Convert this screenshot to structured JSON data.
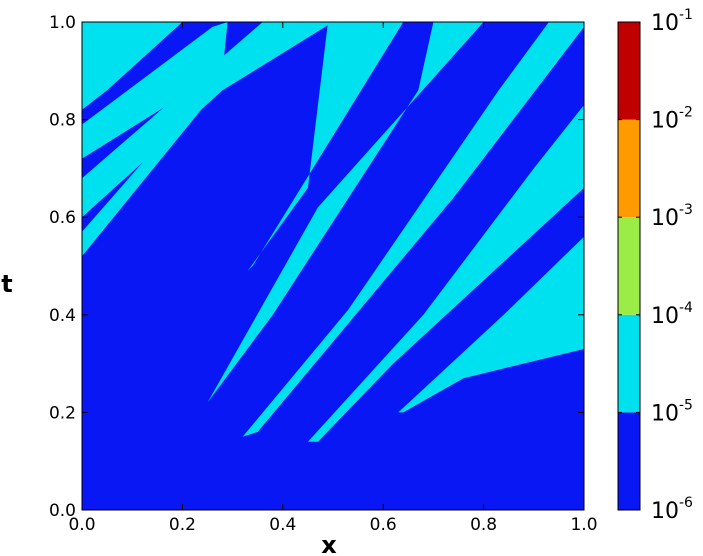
{
  "chart_data": {
    "type": "heatmap",
    "title": "",
    "xlabel": "x",
    "ylabel": "t",
    "xlim": [
      0.0,
      1.0
    ],
    "ylim": [
      0.0,
      1.0
    ],
    "xticks": [
      "0.0",
      "0.2",
      "0.4",
      "0.6",
      "0.8",
      "1.0"
    ],
    "yticks": [
      "0.0",
      "0.2",
      "0.4",
      "0.6",
      "0.8",
      "1.0"
    ],
    "grid": false,
    "colorbar": {
      "scale": "log",
      "range": [
        1e-06,
        0.1
      ],
      "tick_base": "10",
      "tick_exponents": [
        "-6",
        "-5",
        "-4",
        "-3",
        "-2",
        "-1"
      ],
      "levels": [
        {
          "range": [
            1e-06,
            1e-05
          ],
          "color": "#0a17f5"
        },
        {
          "range": [
            1e-05,
            0.0001
          ],
          "color": "#00e1f0"
        },
        {
          "range": [
            0.0001,
            0.001
          ],
          "color": "#9cec47"
        },
        {
          "range": [
            0.001,
            0.01
          ],
          "color": "#ff9a00"
        },
        {
          "range": [
            0.01,
            0.1
          ],
          "color": "#c00000"
        }
      ]
    },
    "background_level_color": "#0a17f5",
    "regions": [
      {
        "level_color": "#00e1f0",
        "points": [
          [
            0.0,
            0.485
          ],
          [
            0.0,
            0.57
          ],
          [
            0.34,
            0.97
          ],
          [
            0.46,
            1.0
          ],
          [
            0.34,
            0.95
          ],
          [
            0.0,
            0.52
          ]
        ]
      },
      {
        "level_color": "#00e1f0",
        "points": [
          [
            0.0,
            0.565
          ],
          [
            0.0,
            0.68
          ],
          [
            0.36,
            1.0
          ],
          [
            0.5,
            1.0
          ],
          [
            0.28,
            0.86
          ],
          [
            0.0,
            0.6
          ]
        ]
      },
      {
        "level_color": "#00e1f0",
        "points": [
          [
            0.0,
            0.7
          ],
          [
            0.0,
            0.79
          ],
          [
            0.26,
            0.99
          ],
          [
            0.29,
            1.0
          ],
          [
            0.28,
            0.9
          ],
          [
            0.0,
            0.72
          ]
        ]
      },
      {
        "level_color": "#00e1f0",
        "points": [
          [
            0.0,
            0.8
          ],
          [
            0.0,
            1.0
          ],
          [
            0.2,
            1.0
          ],
          [
            0.05,
            0.86
          ],
          [
            0.0,
            0.82
          ]
        ]
      },
      {
        "level_color": "#00e1f0",
        "points": [
          [
            0.33,
            0.49
          ],
          [
            0.45,
            0.66
          ],
          [
            0.49,
            1.0
          ],
          [
            0.64,
            1.0
          ],
          [
            0.34,
            0.5
          ]
        ]
      },
      {
        "level_color": "#00e1f0",
        "points": [
          [
            0.25,
            0.22
          ],
          [
            0.38,
            0.4
          ],
          [
            0.67,
            0.86
          ],
          [
            0.7,
            1.0
          ],
          [
            0.8,
            1.0
          ],
          [
            0.47,
            0.62
          ],
          [
            0.25,
            0.22
          ]
        ]
      },
      {
        "level_color": "#00e1f0",
        "points": [
          [
            0.32,
            0.15
          ],
          [
            0.53,
            0.41
          ],
          [
            0.83,
            0.86
          ],
          [
            0.93,
            1.0
          ],
          [
            1.0,
            1.0
          ],
          [
            1.0,
            0.99
          ],
          [
            0.74,
            0.64
          ],
          [
            0.35,
            0.16
          ]
        ]
      },
      {
        "level_color": "#00e1f0",
        "points": [
          [
            0.45,
            0.14
          ],
          [
            0.68,
            0.4
          ],
          [
            0.9,
            0.7
          ],
          [
            1.0,
            0.83
          ],
          [
            1.0,
            0.66
          ],
          [
            0.62,
            0.3
          ],
          [
            0.47,
            0.14
          ]
        ]
      },
      {
        "level_color": "#00e1f0",
        "points": [
          [
            0.63,
            0.2
          ],
          [
            0.84,
            0.4
          ],
          [
            1.0,
            0.56
          ],
          [
            1.0,
            0.33
          ],
          [
            0.76,
            0.27
          ],
          [
            0.64,
            0.2
          ]
        ]
      },
      {
        "level_color": "#00e1f0",
        "points": [
          [
            0.96,
            0.43
          ],
          [
            1.0,
            0.51
          ],
          [
            1.0,
            0.47
          ]
        ]
      }
    ]
  }
}
